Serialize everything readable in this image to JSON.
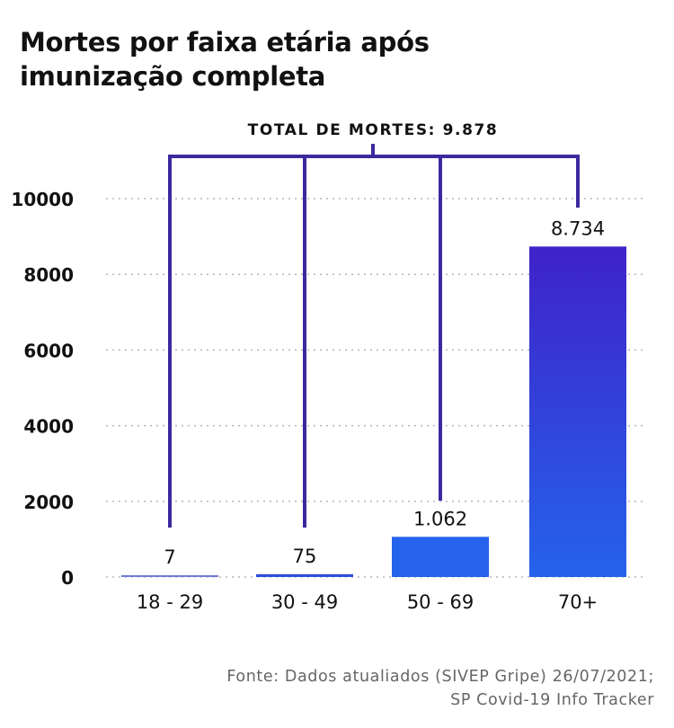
{
  "title": {
    "line1": "Mortes por faixa etária após",
    "line2": "imunização completa"
  },
  "chart_data": {
    "type": "bar",
    "categories": [
      "18 - 29",
      "30 - 49",
      "50 - 69",
      "70+"
    ],
    "values": [
      7,
      75,
      1062,
      8734
    ],
    "data_labels": [
      "7",
      "75",
      "1.062",
      "8.734"
    ],
    "ylim": [
      0,
      10000
    ],
    "yticks": [
      0,
      2000,
      4000,
      6000,
      8000,
      10000
    ],
    "ytick_labels": [
      "0",
      "2000",
      "4000",
      "6000",
      "8000",
      "10000"
    ],
    "grid": true,
    "annotation": "TOTAL DE MORTES: 9.878",
    "colors": {
      "bar_light": "#2563eb",
      "bar_dark": "#3f22c8",
      "bracket": "#3b2a9e",
      "grid": "#b5b5b5"
    }
  },
  "source": {
    "line1": "Fonte: Dados atualiados (SIVEP Gripe) 26/07/2021;",
    "line2": "SP Covid-19 Info Tracker"
  }
}
